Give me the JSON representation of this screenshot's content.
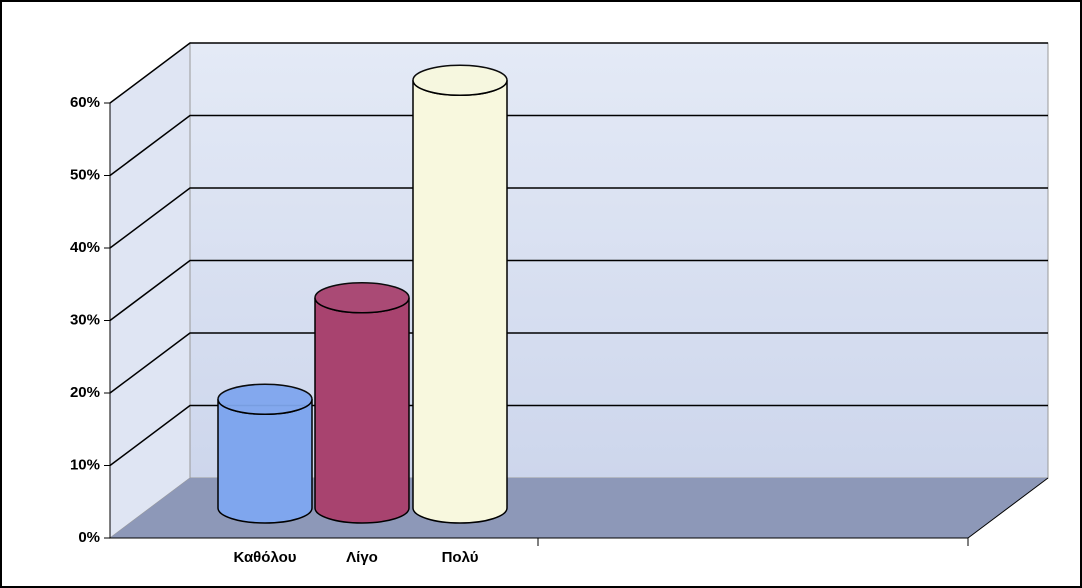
{
  "chart_data": {
    "type": "bar",
    "categories": [
      "Καθόλου",
      "Λίγο",
      "Πολύ"
    ],
    "values": [
      15,
      29,
      59
    ],
    "colors": [
      "#7fa6ee",
      "#a8436f",
      "#f8f8de"
    ],
    "ylim": [
      0,
      60
    ],
    "yticks": [
      {
        "value": 0,
        "label": "0%"
      },
      {
        "value": 10,
        "label": "10%"
      },
      {
        "value": 20,
        "label": "20%"
      },
      {
        "value": 30,
        "label": "30%"
      },
      {
        "value": 40,
        "label": "40%"
      },
      {
        "value": 50,
        "label": "50%"
      },
      {
        "value": 60,
        "label": "60%"
      }
    ],
    "grid": true
  }
}
